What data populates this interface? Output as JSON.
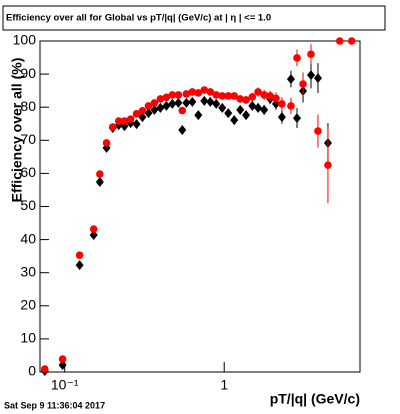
{
  "chart_data": {
    "type": "scatter",
    "title": "Efficiency over all for Global vs pT/|q| (GeV/c) at |  η | <= 1.0",
    "x_label": "pT/|q| (GeV/c)",
    "y_label": "Efficiency over all (%)",
    "timestamp": "Sat Sep  9 11:36:04 2017",
    "x_log": true,
    "xlim": [
      0.07,
      7.1
    ],
    "ylim": [
      0,
      100
    ],
    "xticks": [
      {
        "value": 0.1,
        "label": "10⁻¹"
      },
      1
    ],
    "yticks": [
      0,
      10,
      20,
      30,
      40,
      50,
      60,
      70,
      80,
      90,
      100
    ],
    "series": [
      {
        "color": "#000000",
        "marker": "diamond",
        "x": [
          0.075,
          0.097,
          0.124,
          0.152,
          0.166,
          0.183,
          0.2,
          0.218,
          0.237,
          0.259,
          0.282,
          0.307,
          0.335,
          0.365,
          0.398,
          0.434,
          0.473,
          0.516,
          0.546,
          0.579,
          0.631,
          0.688,
          0.75,
          0.818,
          0.891,
          0.972,
          1.06,
          1.155,
          1.26,
          1.37,
          1.5,
          1.63,
          1.78,
          1.94,
          2.11,
          2.3,
          2.62,
          2.86,
          3.12,
          3.5,
          3.87,
          4.47
        ],
        "values": [
          0.3,
          2.1,
          32.3,
          41.4,
          57.4,
          67.7,
          73.7,
          74.6,
          74.3,
          75.2,
          74.9,
          77,
          78.2,
          79.2,
          79.8,
          80.4,
          81,
          81.3,
          73.1,
          81.3,
          81.6,
          77.6,
          81.9,
          81.6,
          81,
          79.8,
          78.2,
          76.1,
          79.2,
          77.6,
          80.4,
          79.8,
          79.2,
          82.5,
          81,
          77,
          88.5,
          76.7,
          84.9,
          89.7,
          88.8,
          69.2
        ],
        "errors": [
          0.3,
          0.5,
          0.8,
          0.8,
          0.8,
          0.7,
          0.6,
          0.6,
          0.6,
          0.6,
          0.6,
          0.6,
          0.6,
          0.6,
          0.6,
          0.6,
          0.6,
          0.6,
          0.8,
          0.6,
          0.7,
          0.8,
          0.7,
          0.8,
          0.8,
          0.9,
          1,
          1.1,
          1.1,
          1.2,
          1.3,
          1.4,
          1.5,
          1.6,
          1.8,
          2,
          2.5,
          3,
          3.5,
          4,
          4.5,
          6
        ]
      },
      {
        "color": "#ff0000",
        "marker": "circle",
        "x": [
          0.075,
          0.097,
          0.124,
          0.152,
          0.166,
          0.183,
          0.2,
          0.218,
          0.237,
          0.259,
          0.282,
          0.307,
          0.335,
          0.365,
          0.398,
          0.434,
          0.473,
          0.516,
          0.546,
          0.579,
          0.631,
          0.688,
          0.75,
          0.818,
          0.891,
          0.972,
          1.06,
          1.155,
          1.26,
          1.37,
          1.5,
          1.63,
          1.78,
          1.94,
          2.11,
          2.3,
          2.62,
          2.86,
          3.12,
          3.5,
          3.87,
          4.47,
          5.3,
          6.3
        ],
        "values": [
          0.9,
          3.9,
          35.3,
          43.2,
          59.8,
          69.2,
          74,
          75.8,
          75.8,
          76.4,
          78,
          78.9,
          80.4,
          81.3,
          82.5,
          83,
          83.7,
          83.7,
          79,
          84,
          84.6,
          84.3,
          85.2,
          84.6,
          83.7,
          83.4,
          83.4,
          83.4,
          82.5,
          82.2,
          83.1,
          84.6,
          83.7,
          83.4,
          82.7,
          81,
          80.4,
          94.9,
          87,
          96,
          72.8,
          62.5,
          100,
          100
        ],
        "errors": [
          0.4,
          0.6,
          0.8,
          0.8,
          0.8,
          0.7,
          0.6,
          0.6,
          0.6,
          0.6,
          0.6,
          0.6,
          0.6,
          0.6,
          0.6,
          0.6,
          0.6,
          0.6,
          0.8,
          0.6,
          0.7,
          0.7,
          0.7,
          0.8,
          0.8,
          0.9,
          1,
          1,
          1.1,
          1.2,
          1.3,
          1.4,
          1.5,
          1.6,
          1.8,
          2,
          2.5,
          2.5,
          3.5,
          3,
          5,
          11.5,
          0,
          0
        ]
      }
    ]
  }
}
